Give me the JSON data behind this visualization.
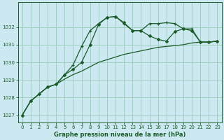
{
  "xlabel": "Graphe pression niveau de la mer (hPa)",
  "bg_color": "#cce8f0",
  "grid_color": "#99ccbb",
  "line_color": "#1a5c28",
  "xlim": [
    -0.5,
    23.5
  ],
  "ylim": [
    1026.6,
    1033.4
  ],
  "yticks": [
    1027,
    1028,
    1029,
    1030,
    1031,
    1032
  ],
  "xticks": [
    0,
    1,
    2,
    3,
    4,
    5,
    6,
    7,
    8,
    9,
    10,
    11,
    12,
    13,
    14,
    15,
    16,
    17,
    18,
    19,
    20,
    21,
    22,
    23
  ],
  "series1_x": [
    0,
    1,
    2,
    3,
    4,
    5,
    6,
    7,
    8,
    9,
    10,
    11,
    12,
    13,
    14,
    15,
    16,
    17,
    18,
    19,
    20,
    21,
    22,
    23
  ],
  "series1_y": [
    1027.0,
    1027.8,
    1028.2,
    1028.6,
    1028.75,
    1029.3,
    1029.85,
    1030.9,
    1031.8,
    1032.2,
    1032.55,
    1032.6,
    1032.2,
    1031.8,
    1031.8,
    1032.2,
    1032.2,
    1032.25,
    1032.2,
    1031.9,
    1031.9,
    1031.15,
    1031.15,
    1031.2
  ],
  "series2_x": [
    0,
    1,
    2,
    3,
    4,
    5,
    6,
    7,
    8,
    9,
    10,
    11,
    12,
    13,
    14,
    15,
    16,
    17,
    18,
    19,
    20,
    21,
    22,
    23
  ],
  "series2_y": [
    1027.0,
    1027.8,
    1028.2,
    1028.6,
    1028.75,
    1029.3,
    1029.6,
    1030.0,
    1031.0,
    1032.15,
    1032.55,
    1032.6,
    1032.25,
    1031.8,
    1031.8,
    1031.5,
    1031.3,
    1031.2,
    1031.75,
    1031.9,
    1031.8,
    1031.15,
    1031.15,
    1031.2
  ],
  "series3_x": [
    0,
    1,
    2,
    3,
    4,
    5,
    6,
    7,
    8,
    9,
    10,
    11,
    12,
    13,
    14,
    15,
    16,
    17,
    18,
    19,
    20,
    21,
    22,
    23
  ],
  "series3_y": [
    1027.0,
    1027.8,
    1028.2,
    1028.6,
    1028.75,
    1029.05,
    1029.3,
    1029.5,
    1029.75,
    1030.0,
    1030.15,
    1030.3,
    1030.45,
    1030.55,
    1030.65,
    1030.75,
    1030.85,
    1030.9,
    1030.95,
    1031.0,
    1031.1,
    1031.15,
    1031.15,
    1031.2
  ],
  "tick_fontsize": 5.0,
  "xlabel_fontsize": 6.0
}
